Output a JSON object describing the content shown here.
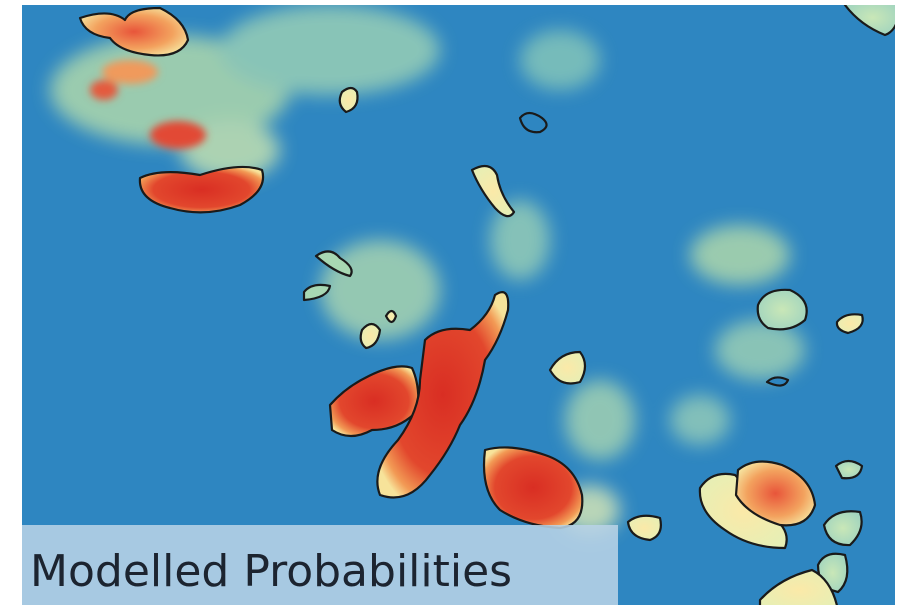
{
  "label": "Modelled Probabilities"
}
